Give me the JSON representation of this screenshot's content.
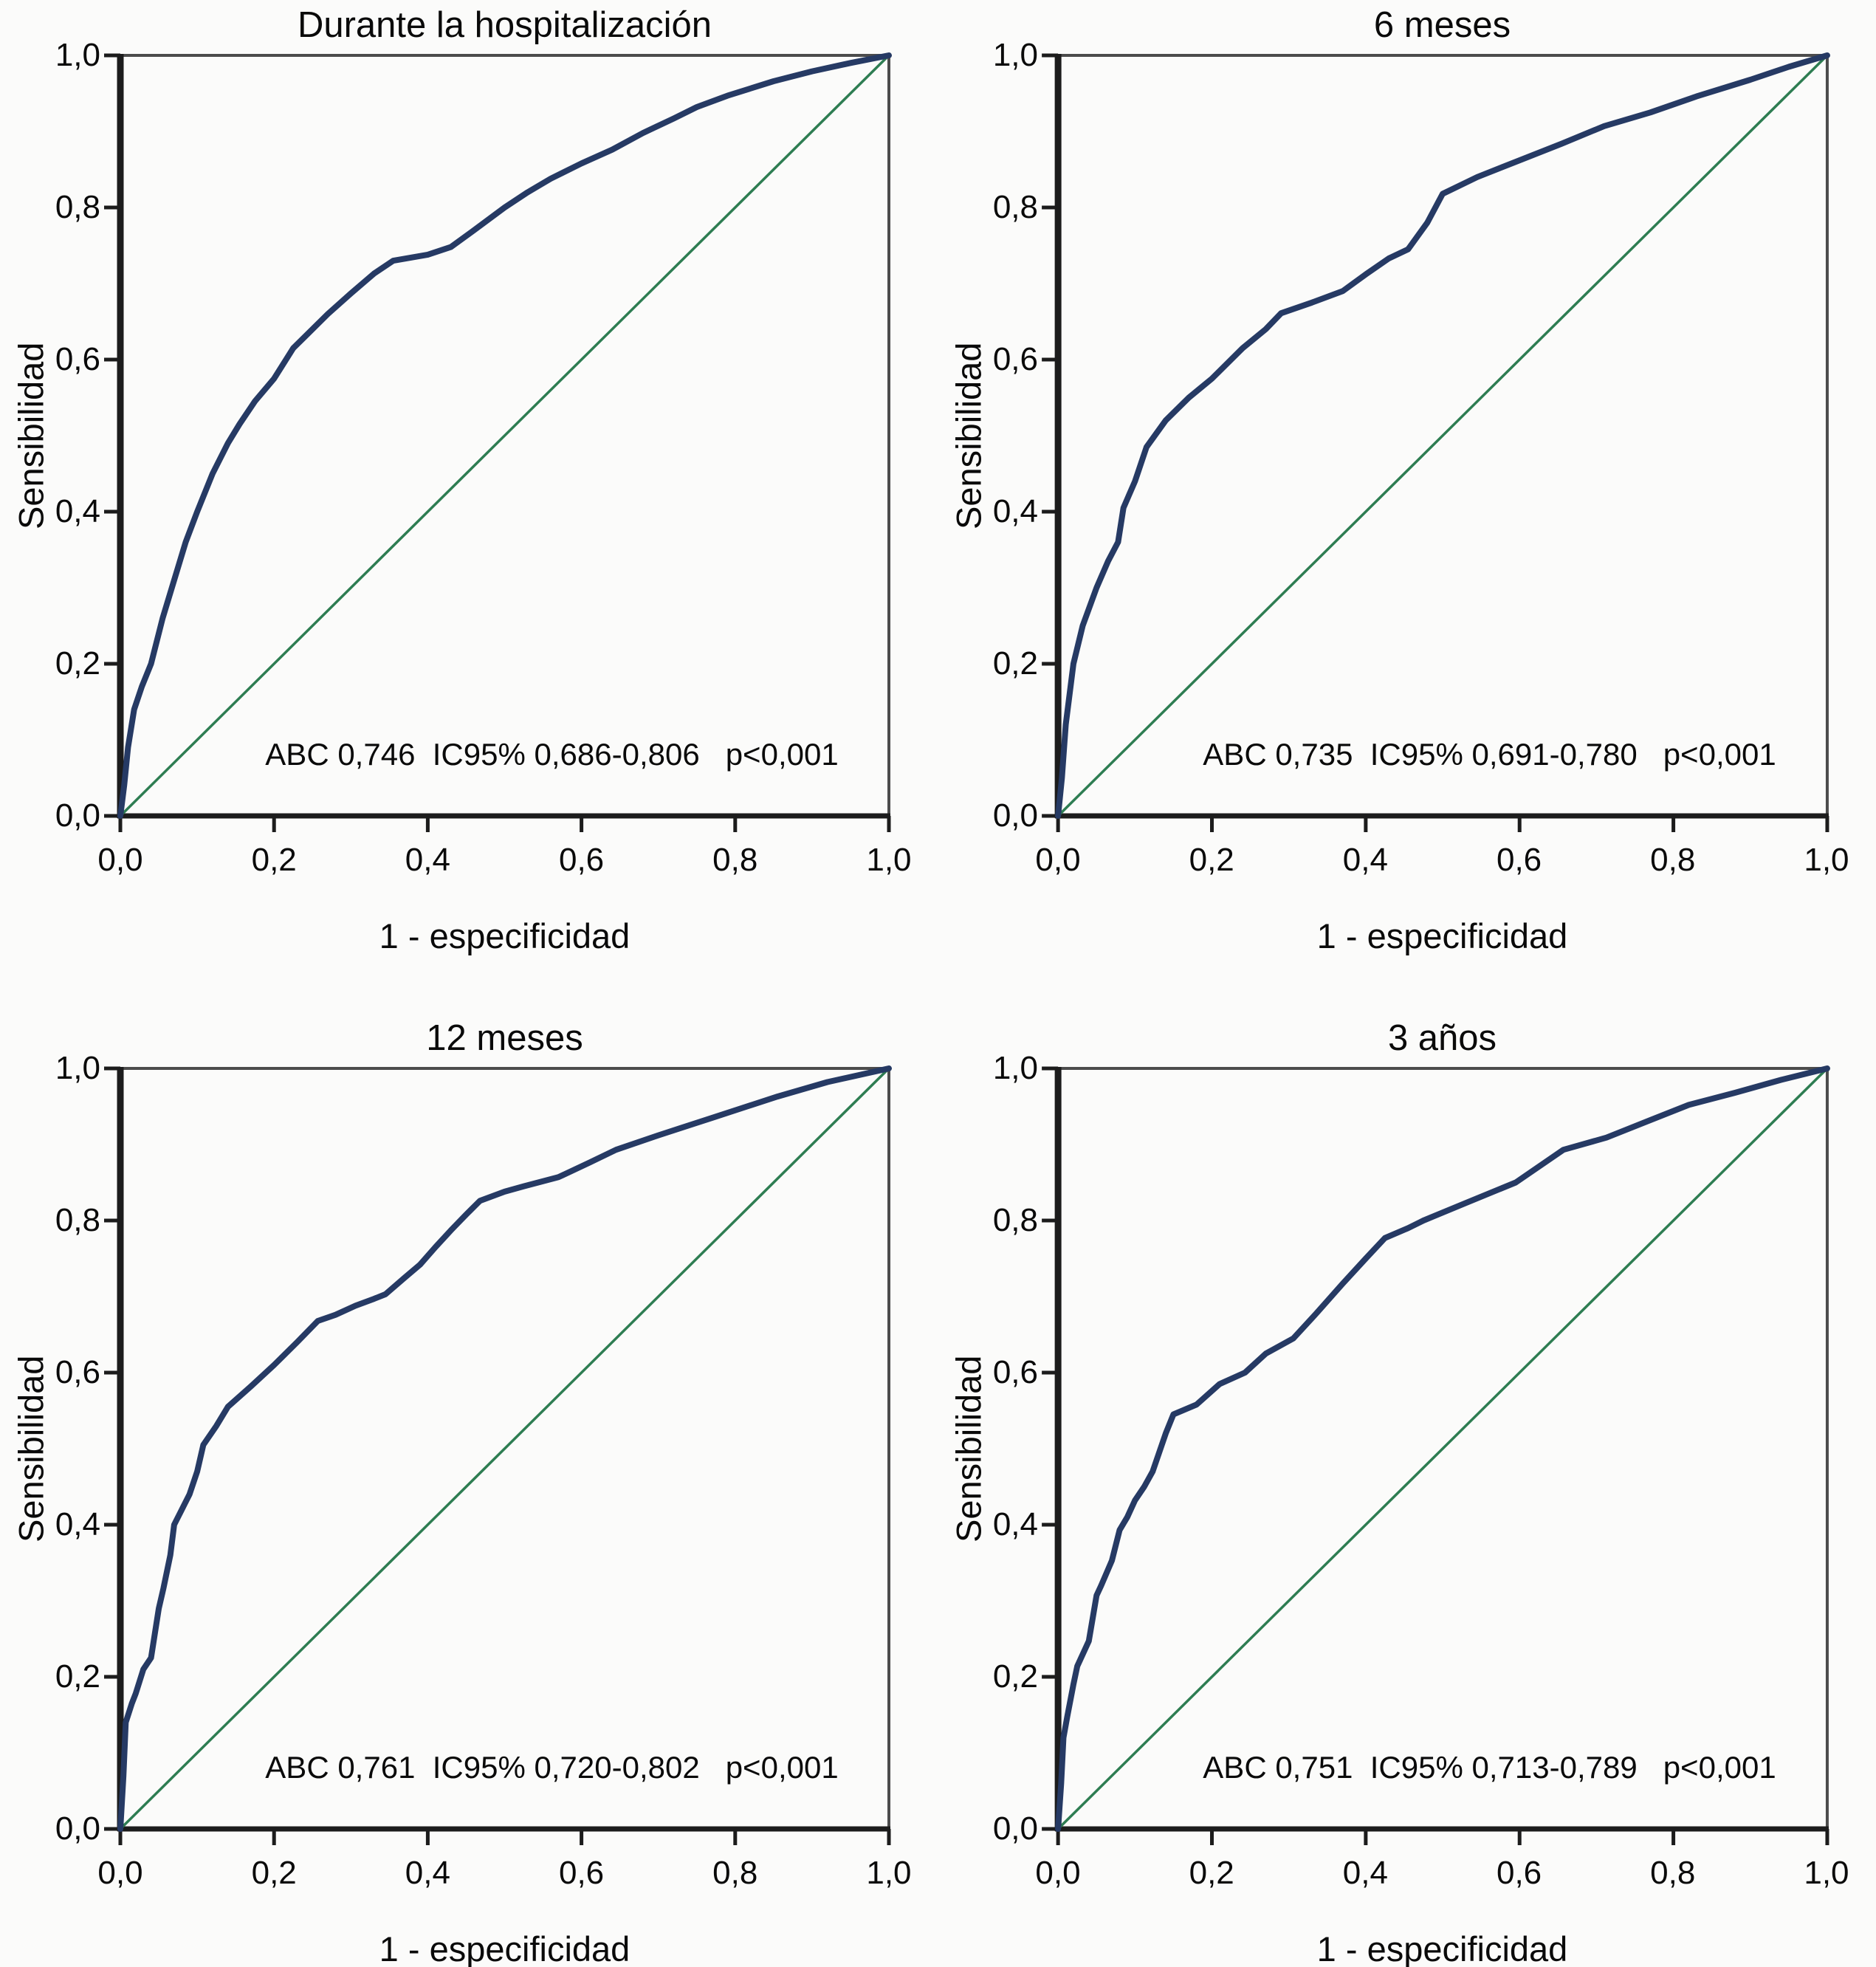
{
  "figure": {
    "panel_count": 4,
    "layout": "2x2 grid of ROC curve panels"
  },
  "colors": {
    "roc_curve": "#263a64",
    "reference_diagonal": "#2e7d52",
    "axis": "#1c1c1c",
    "frame": "#4c4c4c",
    "text": "#0a0a0a",
    "background": "#fbfbfa"
  },
  "chart_data": [
    {
      "type": "line",
      "title": "Durante la hospitalización",
      "xlabel": "1 - especificidad",
      "ylabel": "Sensibilidad",
      "xlim": [
        0,
        1
      ],
      "ylim": [
        0,
        1
      ],
      "grid": false,
      "legend": "none",
      "x_tick_labels": [
        "0,0",
        "0,2",
        "0,4",
        "0,6",
        "0,8",
        "1,0"
      ],
      "y_tick_labels": [
        "0,0",
        "0,2",
        "0,4",
        "0,6",
        "0,8",
        "1,0"
      ],
      "annotation": "ABC 0,746  IC95% 0,686-0,806   p<0,001",
      "stats": {
        "abc": "0,746",
        "ic95": "0,686-0,806",
        "p": "p<0,001"
      },
      "series": [
        {
          "id": "roc-curve",
          "name": "Curva ROC",
          "color": "#263a64",
          "width": 8,
          "points": [
            [
              0,
              0
            ],
            [
              0.005,
              0.04
            ],
            [
              0.01,
              0.09
            ],
            [
              0.018,
              0.14
            ],
            [
              0.028,
              0.17
            ],
            [
              0.04,
              0.2
            ],
            [
              0.055,
              0.26
            ],
            [
              0.07,
              0.31
            ],
            [
              0.085,
              0.36
            ],
            [
              0.1,
              0.4
            ],
            [
              0.12,
              0.45
            ],
            [
              0.14,
              0.49
            ],
            [
              0.155,
              0.515
            ],
            [
              0.175,
              0.545
            ],
            [
              0.2,
              0.575
            ],
            [
              0.225,
              0.615
            ],
            [
              0.245,
              0.635
            ],
            [
              0.27,
              0.66
            ],
            [
              0.3,
              0.687
            ],
            [
              0.33,
              0.713
            ],
            [
              0.355,
              0.73
            ],
            [
              0.4,
              0.738
            ],
            [
              0.43,
              0.748
            ],
            [
              0.46,
              0.77
            ],
            [
              0.5,
              0.8
            ],
            [
              0.53,
              0.82
            ],
            [
              0.56,
              0.838
            ],
            [
              0.6,
              0.858
            ],
            [
              0.64,
              0.876
            ],
            [
              0.68,
              0.898
            ],
            [
              0.72,
              0.917
            ],
            [
              0.75,
              0.932
            ],
            [
              0.79,
              0.947
            ],
            [
              0.85,
              0.966
            ],
            [
              0.9,
              0.979
            ],
            [
              0.95,
              0.99
            ],
            [
              1,
              1
            ]
          ]
        },
        {
          "id": "reference-diagonal-line",
          "name": "Línea de referencia",
          "color": "#2e7d52",
          "width": 3.5,
          "points": [
            [
              0,
              0
            ],
            [
              1,
              1
            ]
          ]
        }
      ]
    },
    {
      "type": "line",
      "title": "6 meses",
      "xlabel": "1 - especificidad",
      "ylabel": "Sensibilidad",
      "xlim": [
        0,
        1
      ],
      "ylim": [
        0,
        1
      ],
      "grid": false,
      "legend": "none",
      "x_tick_labels": [
        "0,0",
        "0,2",
        "0,4",
        "0,6",
        "0,8",
        "1,0"
      ],
      "y_tick_labels": [
        "0,0",
        "0,2",
        "0,4",
        "0,6",
        "0,8",
        "1,0"
      ],
      "annotation": "ABC 0,735  IC95% 0,691-0,780   p<0,001",
      "stats": {
        "abc": "0,735",
        "ic95": "0,691-0,780",
        "p": "p<0,001"
      },
      "series": [
        {
          "id": "roc-curve",
          "name": "Curva ROC",
          "color": "#263a64",
          "width": 8,
          "points": [
            [
              0,
              0
            ],
            [
              0.005,
              0.05
            ],
            [
              0.01,
              0.12
            ],
            [
              0.02,
              0.2
            ],
            [
              0.032,
              0.25
            ],
            [
              0.05,
              0.3
            ],
            [
              0.065,
              0.335
            ],
            [
              0.078,
              0.36
            ],
            [
              0.085,
              0.405
            ],
            [
              0.1,
              0.44
            ],
            [
              0.115,
              0.485
            ],
            [
              0.14,
              0.52
            ],
            [
              0.17,
              0.55
            ],
            [
              0.2,
              0.575
            ],
            [
              0.24,
              0.615
            ],
            [
              0.27,
              0.64
            ],
            [
              0.29,
              0.661
            ],
            [
              0.33,
              0.675
            ],
            [
              0.37,
              0.69
            ],
            [
              0.4,
              0.712
            ],
            [
              0.43,
              0.733
            ],
            [
              0.455,
              0.745
            ],
            [
              0.48,
              0.78
            ],
            [
              0.5,
              0.818
            ],
            [
              0.545,
              0.84
            ],
            [
              0.6,
              0.862
            ],
            [
              0.655,
              0.884
            ],
            [
              0.71,
              0.907
            ],
            [
              0.77,
              0.925
            ],
            [
              0.83,
              0.946
            ],
            [
              0.9,
              0.968
            ],
            [
              0.95,
              0.985
            ],
            [
              1,
              1
            ]
          ]
        },
        {
          "id": "reference-diagonal-line",
          "name": "Línea de referencia",
          "color": "#2e7d52",
          "width": 3.5,
          "points": [
            [
              0,
              0
            ],
            [
              1,
              1
            ]
          ]
        }
      ]
    },
    {
      "type": "line",
      "title": "12 meses",
      "xlabel": "1 - especificidad",
      "ylabel": "Sensibilidad",
      "xlim": [
        0,
        1
      ],
      "ylim": [
        0,
        1
      ],
      "grid": false,
      "legend": "none",
      "x_tick_labels": [
        "0,0",
        "0,2",
        "0,4",
        "0,6",
        "0,8",
        "1,0"
      ],
      "y_tick_labels": [
        "0,0",
        "0,2",
        "0,4",
        "0,6",
        "0,8",
        "1,0"
      ],
      "annotation": "ABC 0,761  IC95% 0,720-0,802   p<0,001",
      "stats": {
        "abc": "0,761",
        "ic95": "0,720-0,802",
        "p": "p<0,001"
      },
      "series": [
        {
          "id": "roc-curve",
          "name": "Curva ROC",
          "color": "#263a64",
          "width": 8,
          "points": [
            [
              0,
              0
            ],
            [
              0.004,
              0.07
            ],
            [
              0.007,
              0.14
            ],
            [
              0.015,
              0.165
            ],
            [
              0.02,
              0.178
            ],
            [
              0.03,
              0.21
            ],
            [
              0.04,
              0.225
            ],
            [
              0.05,
              0.29
            ],
            [
              0.056,
              0.316
            ],
            [
              0.065,
              0.36
            ],
            [
              0.07,
              0.4
            ],
            [
              0.08,
              0.42
            ],
            [
              0.09,
              0.44
            ],
            [
              0.1,
              0.47
            ],
            [
              0.108,
              0.505
            ],
            [
              0.125,
              0.53
            ],
            [
              0.14,
              0.555
            ],
            [
              0.17,
              0.582
            ],
            [
              0.2,
              0.61
            ],
            [
              0.23,
              0.64
            ],
            [
              0.257,
              0.668
            ],
            [
              0.28,
              0.676
            ],
            [
              0.306,
              0.688
            ],
            [
              0.33,
              0.697
            ],
            [
              0.345,
              0.703
            ],
            [
              0.37,
              0.725
            ],
            [
              0.39,
              0.742
            ],
            [
              0.41,
              0.765
            ],
            [
              0.43,
              0.787
            ],
            [
              0.45,
              0.808
            ],
            [
              0.468,
              0.826
            ],
            [
              0.5,
              0.838
            ],
            [
              0.525,
              0.845
            ],
            [
              0.57,
              0.857
            ],
            [
              0.61,
              0.876
            ],
            [
              0.645,
              0.893
            ],
            [
              0.7,
              0.912
            ],
            [
              0.77,
              0.935
            ],
            [
              0.855,
              0.963
            ],
            [
              0.92,
              0.982
            ],
            [
              1,
              1
            ]
          ]
        },
        {
          "id": "reference-diagonal-line",
          "name": "Línea de referencia",
          "color": "#2e7d52",
          "width": 3.5,
          "points": [
            [
              0,
              0
            ],
            [
              1,
              1
            ]
          ]
        }
      ]
    },
    {
      "type": "line",
      "title": "3 años",
      "xlabel": "1 - especificidad",
      "ylabel": "Sensibilidad",
      "xlim": [
        0,
        1
      ],
      "ylim": [
        0,
        1
      ],
      "grid": false,
      "legend": "none",
      "x_tick_labels": [
        "0,0",
        "0,2",
        "0,4",
        "0,6",
        "0,8",
        "1,0"
      ],
      "y_tick_labels": [
        "0,0",
        "0,2",
        "0,4",
        "0,6",
        "0,8",
        "1,0"
      ],
      "annotation": "ABC 0,751  IC95% 0,713-0,789   p<0,001",
      "stats": {
        "abc": "0,751",
        "ic95": "0,713-0,789",
        "p": "p<0,001"
      },
      "series": [
        {
          "id": "roc-curve",
          "name": "Curva ROC",
          "color": "#263a64",
          "width": 8,
          "points": [
            [
              0,
              0
            ],
            [
              0.004,
              0.06
            ],
            [
              0.007,
              0.12
            ],
            [
              0.012,
              0.148
            ],
            [
              0.02,
              0.19
            ],
            [
              0.025,
              0.214
            ],
            [
              0.04,
              0.247
            ],
            [
              0.05,
              0.307
            ],
            [
              0.056,
              0.32
            ],
            [
              0.07,
              0.353
            ],
            [
              0.08,
              0.393
            ],
            [
              0.09,
              0.41
            ],
            [
              0.1,
              0.432
            ],
            [
              0.112,
              0.45
            ],
            [
              0.123,
              0.47
            ],
            [
              0.14,
              0.52
            ],
            [
              0.15,
              0.545
            ],
            [
              0.18,
              0.558
            ],
            [
              0.21,
              0.585
            ],
            [
              0.243,
              0.6
            ],
            [
              0.27,
              0.625
            ],
            [
              0.306,
              0.645
            ],
            [
              0.335,
              0.677
            ],
            [
              0.37,
              0.717
            ],
            [
              0.4,
              0.75
            ],
            [
              0.425,
              0.777
            ],
            [
              0.455,
              0.79
            ],
            [
              0.475,
              0.8
            ],
            [
              0.53,
              0.823
            ],
            [
              0.595,
              0.85
            ],
            [
              0.657,
              0.893
            ],
            [
              0.713,
              0.909
            ],
            [
              0.77,
              0.932
            ],
            [
              0.82,
              0.952
            ],
            [
              0.88,
              0.968
            ],
            [
              0.94,
              0.985
            ],
            [
              1,
              1
            ]
          ]
        },
        {
          "id": "reference-diagonal-line",
          "name": "Línea de referencia",
          "color": "#2e7d52",
          "width": 3.5,
          "points": [
            [
              0,
              0
            ],
            [
              1,
              1
            ]
          ]
        }
      ]
    }
  ]
}
